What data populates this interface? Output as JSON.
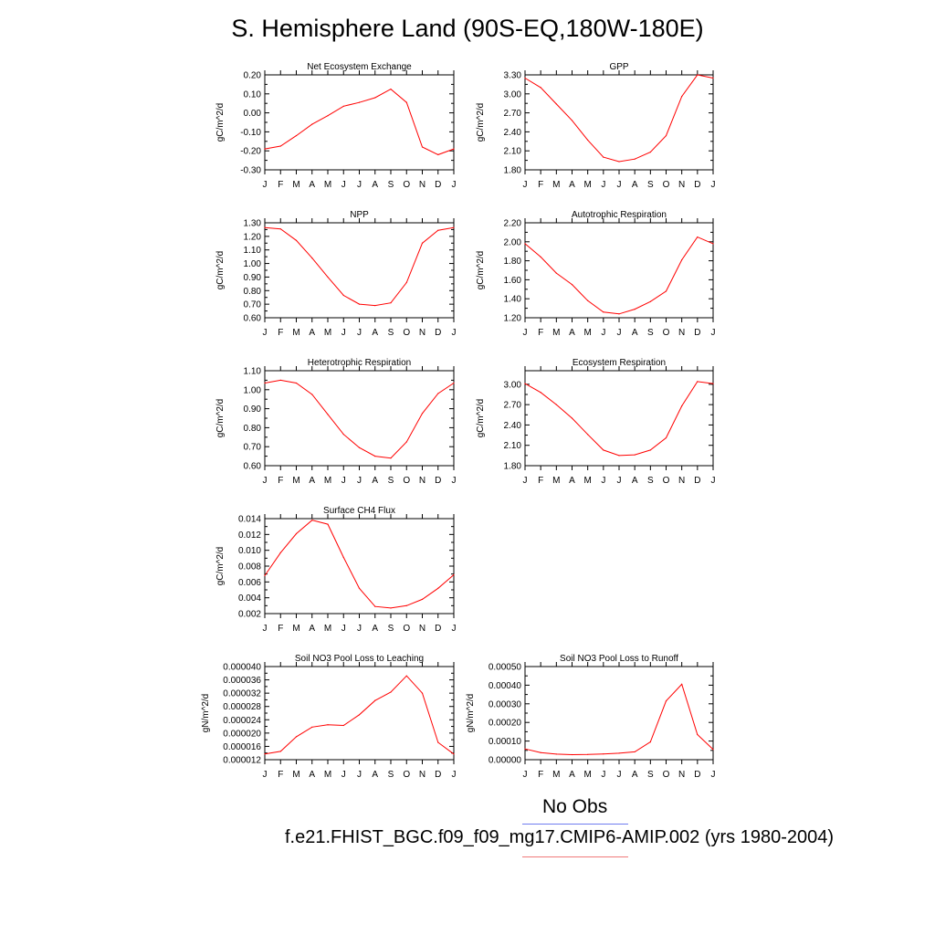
{
  "page": {
    "title": "S. Hemisphere Land (90S-EQ,180W-180E)",
    "legend": {
      "obs_label": "No Obs",
      "model_label": "f.e21.FHIST_BGC.f09_f09_mg17.CMIP6-AMIP.002 (yrs 1980-2004)",
      "obs_color": "#6f7cf0",
      "model_color": "#f07a7a"
    }
  },
  "colors": {
    "series": "#ff0000",
    "axis": "#000000",
    "background": "#ffffff"
  },
  "chart_data": [
    {
      "type": "line",
      "title": "Net Ecosystem Exchange",
      "ylabel": "gC/m^2/d",
      "x": [
        "J",
        "F",
        "M",
        "A",
        "M",
        "J",
        "J",
        "A",
        "S",
        "O",
        "N",
        "D",
        "J"
      ],
      "ylim": [
        -0.3,
        0.2
      ],
      "yticks": [
        "0.20",
        "0.10",
        "0.00",
        "-0.10",
        "-0.20",
        "-0.30"
      ],
      "ytick_values": [
        0.2,
        0.1,
        0.0,
        -0.1,
        -0.2,
        -0.3
      ],
      "values": [
        -0.19,
        -0.175,
        -0.12,
        -0.06,
        -0.015,
        0.035,
        0.055,
        0.08,
        0.125,
        0.055,
        -0.18,
        -0.22,
        -0.19
      ]
    },
    {
      "type": "line",
      "title": "GPP",
      "ylabel": "gC/m^2/d",
      "x": [
        "J",
        "F",
        "M",
        "A",
        "M",
        "J",
        "J",
        "A",
        "S",
        "O",
        "N",
        "D",
        "J"
      ],
      "ylim": [
        1.8,
        3.3
      ],
      "yticks": [
        "3.30",
        "3.00",
        "2.70",
        "2.40",
        "2.10",
        "1.80"
      ],
      "ytick_values": [
        3.3,
        3.0,
        2.7,
        2.4,
        2.1,
        1.8
      ],
      "values": [
        3.25,
        3.1,
        2.84,
        2.58,
        2.27,
        2.0,
        1.93,
        1.97,
        2.08,
        2.34,
        2.96,
        3.3,
        3.25
      ]
    },
    {
      "type": "line",
      "title": "NPP",
      "ylabel": "gC/m^2/d",
      "x": [
        "J",
        "F",
        "M",
        "A",
        "M",
        "J",
        "J",
        "A",
        "S",
        "O",
        "N",
        "D",
        "J"
      ],
      "ylim": [
        0.6,
        1.3
      ],
      "yticks": [
        "1.30",
        "1.20",
        "1.10",
        "1.00",
        "0.90",
        "0.80",
        "0.70",
        "0.60"
      ],
      "ytick_values": [
        1.3,
        1.2,
        1.1,
        1.0,
        0.9,
        0.8,
        0.7,
        0.6
      ],
      "values": [
        1.265,
        1.255,
        1.17,
        1.04,
        0.9,
        0.765,
        0.7,
        0.69,
        0.71,
        0.86,
        1.15,
        1.245,
        1.265
      ]
    },
    {
      "type": "line",
      "title": "Autotrophic Respiration",
      "ylabel": "gC/m^2/d",
      "x": [
        "J",
        "F",
        "M",
        "A",
        "M",
        "J",
        "J",
        "A",
        "S",
        "O",
        "N",
        "D",
        "J"
      ],
      "ylim": [
        1.2,
        2.2
      ],
      "yticks": [
        "2.20",
        "2.00",
        "1.80",
        "1.60",
        "1.40",
        "1.20"
      ],
      "ytick_values": [
        2.2,
        2.0,
        1.8,
        1.6,
        1.4,
        1.2
      ],
      "values": [
        1.98,
        1.84,
        1.67,
        1.55,
        1.38,
        1.26,
        1.24,
        1.29,
        1.37,
        1.48,
        1.81,
        2.05,
        1.98
      ]
    },
    {
      "type": "line",
      "title": "Heterotrophic Respiration",
      "ylabel": "gC/m^2/d",
      "x": [
        "J",
        "F",
        "M",
        "A",
        "M",
        "J",
        "J",
        "A",
        "S",
        "O",
        "N",
        "D",
        "J"
      ],
      "ylim": [
        0.6,
        1.1
      ],
      "yticks": [
        "1.10",
        "1.00",
        "0.90",
        "0.80",
        "0.70",
        "0.60"
      ],
      "ytick_values": [
        1.1,
        1.0,
        0.9,
        0.8,
        0.7,
        0.6
      ],
      "values": [
        1.035,
        1.05,
        1.035,
        0.975,
        0.87,
        0.765,
        0.695,
        0.65,
        0.64,
        0.725,
        0.875,
        0.98,
        1.035
      ]
    },
    {
      "type": "line",
      "title": "Ecosystem Respiration",
      "ylabel": "gC/m^2/d",
      "x": [
        "J",
        "F",
        "M",
        "A",
        "M",
        "J",
        "J",
        "A",
        "S",
        "O",
        "N",
        "D",
        "J"
      ],
      "ylim": [
        1.8,
        3.2
      ],
      "yticks": [
        "3.00",
        "2.70",
        "2.40",
        "2.10",
        "1.80"
      ],
      "ytick_values": [
        3.0,
        2.7,
        2.4,
        2.1,
        1.8
      ],
      "values": [
        3.01,
        2.88,
        2.7,
        2.5,
        2.26,
        2.03,
        1.95,
        1.96,
        2.03,
        2.21,
        2.68,
        3.04,
        3.01
      ]
    },
    {
      "type": "line",
      "title": "Surface CH4 Flux",
      "ylabel": "gC/m^2/d",
      "x": [
        "J",
        "F",
        "M",
        "A",
        "M",
        "J",
        "J",
        "A",
        "S",
        "O",
        "N",
        "D",
        "J"
      ],
      "ylim": [
        0.002,
        0.014
      ],
      "yticks": [
        "0.014",
        "0.012",
        "0.010",
        "0.008",
        "0.006",
        "0.004",
        "0.002"
      ],
      "ytick_values": [
        0.014,
        0.012,
        0.01,
        0.008,
        0.006,
        0.004,
        0.002
      ],
      "values": [
        0.0068,
        0.0097,
        0.0121,
        0.0138,
        0.0133,
        0.0091,
        0.0052,
        0.0029,
        0.0027,
        0.003,
        0.0038,
        0.0052,
        0.0069
      ]
    },
    {
      "type": "line",
      "title": "Soil NO3 Pool Loss to Leaching",
      "ylabel": "gN/m^2/d",
      "x": [
        "J",
        "F",
        "M",
        "A",
        "M",
        "J",
        "J",
        "A",
        "S",
        "O",
        "N",
        "D",
        "J"
      ],
      "ylim": [
        1.2e-05,
        4e-05
      ],
      "yticks": [
        "0.000040",
        "0.000036",
        "0.000032",
        "0.000028",
        "0.000024",
        "0.000020",
        "0.000016",
        "0.000012"
      ],
      "ytick_values": [
        4e-05,
        3.6e-05,
        3.2e-05,
        2.8e-05,
        2.4e-05,
        2e-05,
        1.6e-05,
        1.2e-05
      ],
      "values": [
        1.37e-05,
        1.45e-05,
        1.89e-05,
        2.18e-05,
        2.25e-05,
        2.23e-05,
        2.55e-05,
        2.98e-05,
        3.23e-05,
        3.72e-05,
        3.2e-05,
        1.72e-05,
        1.37e-05
      ]
    },
    {
      "type": "line",
      "title": "Soil NO3 Pool Loss to Runoff",
      "ylabel": "gN/m^2/d",
      "x": [
        "J",
        "F",
        "M",
        "A",
        "M",
        "J",
        "J",
        "A",
        "S",
        "O",
        "N",
        "D",
        "J"
      ],
      "ylim": [
        0.0,
        0.0005
      ],
      "yticks": [
        "0.00050",
        "0.00040",
        "0.00030",
        "0.00020",
        "0.00010",
        "0.00000"
      ],
      "ytick_values": [
        0.0005,
        0.0004,
        0.0003,
        0.0002,
        0.0001,
        0.0
      ],
      "values": [
        5.8e-05,
        3.8e-05,
        3e-05,
        2.7e-05,
        2.8e-05,
        3.1e-05,
        3.5e-05,
        4.2e-05,
        9.5e-05,
        0.000315,
        0.000405,
        0.000135,
        5.5e-05
      ]
    }
  ]
}
